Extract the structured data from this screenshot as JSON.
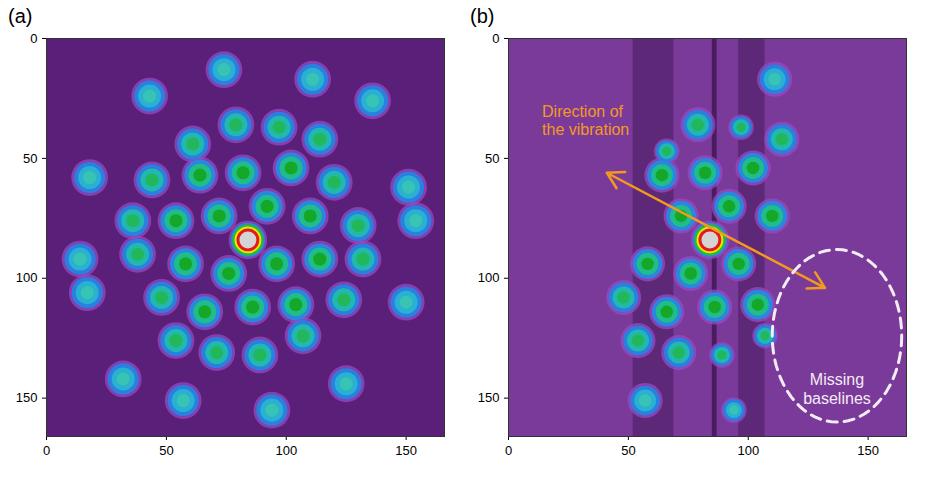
{
  "chart_data": [
    {
      "type": "image",
      "panel": "(a)",
      "xlim": [
        0,
        166
      ],
      "ylim": [
        0,
        166
      ],
      "xticks": [
        0,
        50,
        100,
        150
      ],
      "yticks": [
        0,
        50,
        100,
        150
      ],
      "spots": [
        [
          74,
          13,
          1,
          6.5
        ],
        [
          111,
          17,
          1,
          6.5
        ],
        [
          43,
          24,
          1,
          6.5
        ],
        [
          136,
          26,
          1,
          6.5
        ],
        [
          79,
          36,
          2,
          6.5
        ],
        [
          97,
          37,
          2,
          6.5
        ],
        [
          114,
          42,
          2,
          6.5
        ],
        [
          61,
          44,
          2,
          6.5
        ],
        [
          44,
          59,
          2,
          6.5
        ],
        [
          64,
          57,
          3,
          6.5
        ],
        [
          82,
          56,
          3,
          6.5
        ],
        [
          102,
          54,
          3,
          6.5
        ],
        [
          120,
          60,
          2,
          6.5
        ],
        [
          18,
          58,
          1,
          6.5
        ],
        [
          151,
          62,
          1,
          6.5
        ],
        [
          36,
          76,
          2,
          6.5
        ],
        [
          54,
          76,
          3,
          6.5
        ],
        [
          72,
          74,
          3,
          6.5
        ],
        [
          92,
          70,
          3,
          6.5
        ],
        [
          110,
          74,
          3,
          6.5
        ],
        [
          130,
          78,
          2,
          6.5
        ],
        [
          14,
          92,
          1,
          6.5
        ],
        [
          94,
          155,
          1,
          6.5
        ],
        [
          57,
          151,
          1,
          6.5
        ],
        [
          125,
          144,
          1,
          6.5
        ],
        [
          32,
          142,
          1,
          6.5
        ],
        [
          89,
          132,
          2,
          6.5
        ],
        [
          71,
          131,
          2,
          6.5
        ],
        [
          54,
          126,
          2,
          6.5
        ],
        [
          107,
          124,
          2,
          6.5
        ],
        [
          124,
          109,
          2,
          6.5
        ],
        [
          104,
          111,
          3,
          6.5
        ],
        [
          86,
          112,
          3,
          6.5
        ],
        [
          66,
          114,
          3,
          6.5
        ],
        [
          48,
          108,
          2,
          6.5
        ],
        [
          150,
          110,
          1,
          6.5
        ],
        [
          17,
          106,
          1,
          6.5
        ],
        [
          132,
          92,
          2,
          6.5
        ],
        [
          114,
          92,
          3,
          6.5
        ],
        [
          96,
          94,
          3,
          6.5
        ],
        [
          76,
          98,
          3,
          6.5
        ],
        [
          58,
          94,
          3,
          6.5
        ],
        [
          38,
          90,
          2,
          6.5
        ],
        [
          154,
          76,
          1,
          6.5
        ],
        [
          84,
          84,
          4,
          6.8
        ]
      ]
    },
    {
      "type": "image",
      "panel": "(b)",
      "xlim": [
        0,
        166
      ],
      "ylim": [
        0,
        166
      ],
      "xticks": [
        0,
        50,
        100,
        150
      ],
      "yticks": [
        0,
        50,
        100,
        150
      ],
      "annotations": [
        "Direction of the vibration",
        "Missing baselines"
      ],
      "spots": [
        [
          111,
          17,
          1,
          6.2
        ],
        [
          97,
          37,
          2,
          4.5
        ],
        [
          114,
          42,
          2,
          6.2
        ],
        [
          79,
          36,
          2,
          6.2
        ],
        [
          66,
          47,
          2,
          4.5
        ],
        [
          102,
          54,
          3,
          6.2
        ],
        [
          82,
          56,
          3,
          6.2
        ],
        [
          64,
          57,
          3,
          6.2
        ],
        [
          92,
          70,
          3,
          6.2
        ],
        [
          72,
          74,
          3,
          6.2
        ],
        [
          110,
          74,
          3,
          6.2
        ],
        [
          96,
          94,
          3,
          6.2
        ],
        [
          76,
          98,
          3,
          6.2
        ],
        [
          58,
          94,
          3,
          6.2
        ],
        [
          104,
          111,
          3,
          6.2
        ],
        [
          86,
          112,
          3,
          6.2
        ],
        [
          66,
          114,
          3,
          6.2
        ],
        [
          48,
          108,
          2,
          6.2
        ],
        [
          107,
          124,
          2,
          4.5
        ],
        [
          89,
          132,
          2,
          4.5
        ],
        [
          71,
          131,
          2,
          6.2
        ],
        [
          54,
          126,
          2,
          6.2
        ],
        [
          57,
          151,
          1,
          6.2
        ],
        [
          94,
          155,
          1,
          4.5
        ],
        [
          84,
          84,
          4,
          6.8
        ]
      ]
    }
  ]
}
